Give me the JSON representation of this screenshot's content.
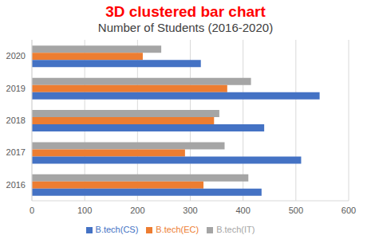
{
  "chart_data": {
    "type": "bar",
    "title": "3D clustered bar chart",
    "subtitle": "Number of Students (2016-2020)",
    "orientation": "horizontal",
    "categories": [
      "2016",
      "2017",
      "2018",
      "2019",
      "2020"
    ],
    "series": [
      {
        "name": "B.tech(IT)",
        "color": "#a5a5a5",
        "values": [
          410,
          365,
          355,
          415,
          245
        ]
      },
      {
        "name": "B.tech(EC)",
        "color": "#ed7d31",
        "values": [
          325,
          290,
          345,
          370,
          210
        ]
      },
      {
        "name": "B.tech(CS)",
        "color": "#4472c4",
        "values": [
          435,
          510,
          440,
          545,
          320
        ]
      }
    ],
    "xlim": [
      0,
      600
    ],
    "xticks": [
      0,
      100,
      200,
      300,
      400,
      500,
      600
    ],
    "grid": true,
    "legend": "bottom"
  }
}
